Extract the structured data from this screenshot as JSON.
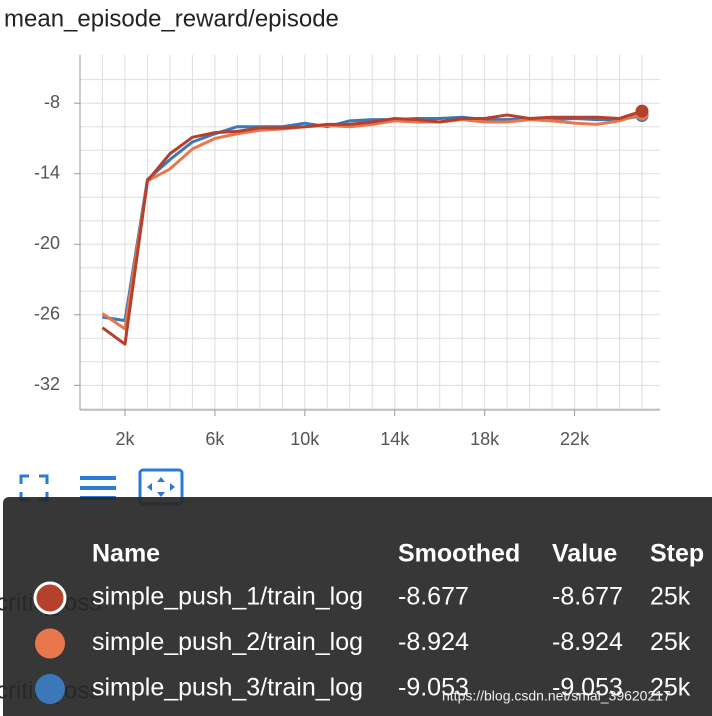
{
  "chart_data": {
    "type": "line",
    "title": "mean_episode_reward/episode",
    "x": [
      1000,
      2000,
      3000,
      4000,
      5000,
      6000,
      7000,
      8000,
      9000,
      10000,
      11000,
      12000,
      13000,
      14000,
      15000,
      16000,
      17000,
      18000,
      19000,
      20000,
      21000,
      22000,
      23000,
      24000,
      25000
    ],
    "series": [
      {
        "name": "simple_push_1/train_log",
        "color": "#b5402b",
        "values": [
          -27.1,
          -28.5,
          -14.6,
          -12.3,
          -10.9,
          -10.5,
          -10.4,
          -10.1,
          -10.1,
          -10.0,
          -9.8,
          -9.8,
          -9.6,
          -9.3,
          -9.4,
          -9.6,
          -9.3,
          -9.3,
          -9.0,
          -9.3,
          -9.2,
          -9.2,
          -9.2,
          -9.3,
          -8.677
        ]
      },
      {
        "name": "simple_push_2/train_log",
        "color": "#e8774e",
        "values": [
          -25.9,
          -27.2,
          -14.6,
          -13.6,
          -11.9,
          -11.0,
          -10.6,
          -10.3,
          -10.2,
          -10.0,
          -9.9,
          -10.0,
          -9.8,
          -9.5,
          -9.6,
          -9.6,
          -9.4,
          -9.6,
          -9.6,
          -9.4,
          -9.5,
          -9.7,
          -9.8,
          -9.5,
          -8.924
        ]
      },
      {
        "name": "simple_push_3/train_log",
        "color": "#3b78b9",
        "values": [
          -26.2,
          -26.5,
          -14.5,
          -12.8,
          -11.3,
          -10.6,
          -10.0,
          -10.0,
          -10.0,
          -9.7,
          -10.0,
          -9.5,
          -9.4,
          -9.4,
          -9.3,
          -9.3,
          -9.2,
          -9.4,
          -9.4,
          -9.3,
          -9.4,
          -9.3,
          -9.4,
          -9.4,
          -9.053
        ]
      }
    ],
    "xlim": [
      0,
      25800
    ],
    "ylim": [
      -34.1,
      -3.9
    ],
    "xticks": [
      {
        "value": 2000,
        "label": "2k"
      },
      {
        "value": 6000,
        "label": "6k"
      },
      {
        "value": 10000,
        "label": "10k"
      },
      {
        "value": 14000,
        "label": "14k"
      },
      {
        "value": 18000,
        "label": "18k"
      },
      {
        "value": 22000,
        "label": "22k"
      }
    ],
    "yticks": [
      -8,
      -14,
      -20,
      -26,
      -32
    ],
    "xgrid": [
      0,
      1000,
      2000,
      3000,
      4000,
      5000,
      6000,
      7000,
      8000,
      9000,
      10000,
      11000,
      12000,
      13000,
      14000,
      15000,
      16000,
      17000,
      18000,
      19000,
      20000,
      21000,
      22000,
      23000,
      24000,
      25000
    ],
    "ygrid": [
      -6,
      -8,
      -10,
      -12,
      -14,
      -16,
      -18,
      -20,
      -22,
      -24,
      -26,
      -28,
      -30,
      -32,
      -34
    ],
    "grid": true,
    "tooltip": {
      "columns": [
        "Name",
        "Smoothed",
        "Value",
        "Step"
      ],
      "rows": [
        {
          "smoothed": "-8.677",
          "value": "-8.677",
          "step": "25k"
        },
        {
          "smoothed": "-8.924",
          "value": "-8.924",
          "step": "25k"
        },
        {
          "smoothed": "-9.053",
          "value": "-9.053",
          "step": "25k"
        }
      ]
    },
    "background_label": "critic_loss",
    "watermark": "https://blog.csdn.net/smal_39620217"
  }
}
